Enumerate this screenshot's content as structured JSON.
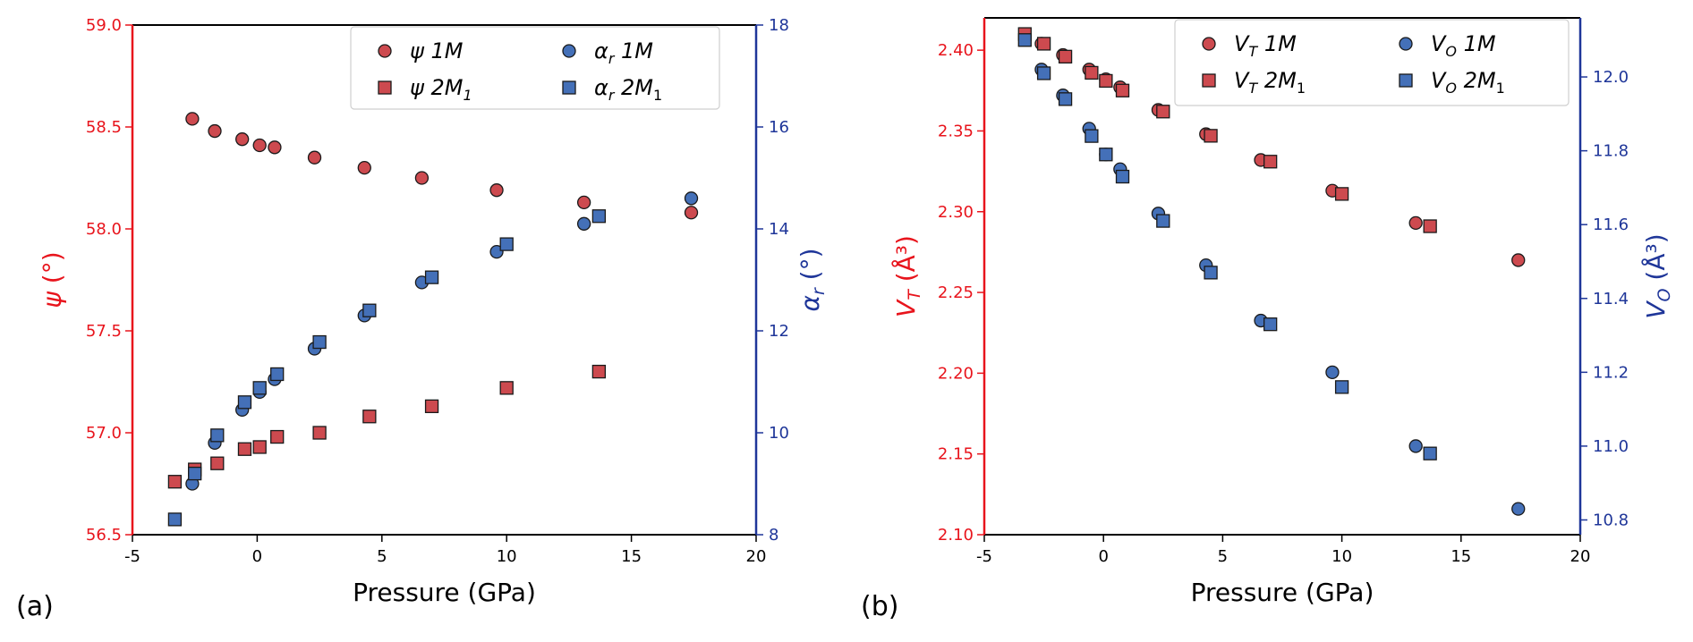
{
  "chart_data": [
    {
      "panel_label": "(a)",
      "type": "scatter",
      "xlabel": "Pressure (GPa)",
      "x_ticks": [
        "-5",
        "0",
        "5",
        "10",
        "15",
        "20"
      ],
      "xlim": [
        -5,
        20
      ],
      "y_left": {
        "label_main": "ψ",
        "label_unit": " (°)",
        "color": "#e8141c",
        "ylim": [
          56.5,
          59.0
        ],
        "ticks": [
          "56.5",
          "57.0",
          "57.5",
          "58.0",
          "58.5",
          "59.0"
        ]
      },
      "y_right": {
        "label_main": "α",
        "label_sub": "r",
        "label_unit": " (°)",
        "color": "#1f3699",
        "ylim": [
          8,
          18
        ],
        "ticks": [
          "8",
          "10",
          "12",
          "14",
          "16",
          "18"
        ]
      },
      "series": [
        {
          "name": "ψ 1M",
          "legend_main": "ψ 1M",
          "legend_sub": "",
          "marker": "circle",
          "color": "#cd4a4f",
          "axis": "left",
          "points": [
            [
              -2.6,
              58.54
            ],
            [
              -1.7,
              58.48
            ],
            [
              -0.6,
              58.44
            ],
            [
              0.1,
              58.41
            ],
            [
              0.7,
              58.4
            ],
            [
              2.3,
              58.35
            ],
            [
              4.3,
              58.3
            ],
            [
              6.6,
              58.25
            ],
            [
              9.6,
              58.19
            ],
            [
              13.1,
              58.13
            ],
            [
              17.4,
              58.08
            ]
          ]
        },
        {
          "name": "ψ 2M1",
          "legend_main": "ψ 2M",
          "legend_sub": "1",
          "marker": "square",
          "color": "#cd4a4f",
          "axis": "left",
          "points": [
            [
              -3.3,
              56.76
            ],
            [
              -2.5,
              56.82
            ],
            [
              -1.6,
              56.85
            ],
            [
              -0.5,
              56.92
            ],
            [
              0.1,
              56.93
            ],
            [
              0.8,
              56.98
            ],
            [
              2.5,
              57.0
            ],
            [
              4.5,
              57.08
            ],
            [
              7.0,
              57.13
            ],
            [
              10.0,
              57.22
            ],
            [
              13.7,
              57.3
            ]
          ]
        },
        {
          "name": "αr 1M",
          "legend_main": "α",
          "legend_sub": "r",
          "legend_after": " 1M",
          "marker": "circle",
          "color": "#4470b8",
          "axis": "right",
          "points": [
            [
              -2.6,
              9.0
            ],
            [
              -1.7,
              9.8
            ],
            [
              -0.6,
              10.45
            ],
            [
              0.1,
              10.8
            ],
            [
              0.7,
              11.05
            ],
            [
              2.3,
              11.65
            ],
            [
              4.3,
              12.3
            ],
            [
              6.6,
              12.95
            ],
            [
              9.6,
              13.55
            ],
            [
              13.1,
              14.1
            ],
            [
              17.4,
              14.6
            ]
          ]
        },
        {
          "name": "αr 2M1",
          "legend_main": "α",
          "legend_sub": "r",
          "legend_after": " 2M",
          "legend_sub2": "1",
          "marker": "square",
          "color": "#4470b8",
          "axis": "right",
          "points": [
            [
              -3.3,
              8.3
            ],
            [
              -2.5,
              9.2
            ],
            [
              -1.6,
              9.95
            ],
            [
              -0.5,
              10.6
            ],
            [
              0.1,
              10.88
            ],
            [
              0.8,
              11.15
            ],
            [
              2.5,
              11.78
            ],
            [
              4.5,
              12.4
            ],
            [
              7.0,
              13.05
            ],
            [
              10.0,
              13.7
            ],
            [
              13.7,
              14.25
            ]
          ]
        }
      ]
    },
    {
      "panel_label": "(b)",
      "type": "scatter",
      "xlabel": "Pressure (GPa)",
      "x_ticks": [
        "-5",
        "0",
        "5",
        "10",
        "15",
        "20"
      ],
      "xlim": [
        -5,
        20
      ],
      "y_left": {
        "label_main": "V",
        "label_sub": "T",
        "label_unit": " (Å³)",
        "color": "#e8141c",
        "ylim": [
          2.1,
          2.42
        ],
        "ticks": [
          "2.10",
          "2.15",
          "2.20",
          "2.25",
          "2.30",
          "2.35",
          "2.40"
        ]
      },
      "y_right": {
        "label_main": "V",
        "label_sub": "O",
        "label_unit": " (Å³)",
        "color": "#1f3699",
        "ylim": [
          10.76,
          12.16
        ],
        "ticks": [
          "10.8",
          "11.0",
          "11.2",
          "11.4",
          "11.6",
          "11.8",
          "12.0"
        ]
      },
      "series": [
        {
          "name": "VT 1M",
          "legend_main": "V",
          "legend_sub": "T",
          "legend_after": " 1M",
          "marker": "circle",
          "color": "#cd4a4f",
          "axis": "left",
          "points": [
            [
              -2.6,
              2.404
            ],
            [
              -1.7,
              2.397
            ],
            [
              -0.6,
              2.388
            ],
            [
              0.1,
              2.382
            ],
            [
              0.7,
              2.377
            ],
            [
              2.3,
              2.363
            ],
            [
              4.3,
              2.348
            ],
            [
              6.6,
              2.332
            ],
            [
              9.6,
              2.313
            ],
            [
              13.1,
              2.293
            ],
            [
              17.4,
              2.27
            ]
          ]
        },
        {
          "name": "VT 2M1",
          "legend_main": "V",
          "legend_sub": "T",
          "legend_after": " 2M",
          "legend_sub2": "1",
          "marker": "square",
          "color": "#cd4a4f",
          "axis": "left",
          "points": [
            [
              -3.3,
              2.41
            ],
            [
              -2.5,
              2.404
            ],
            [
              -1.6,
              2.396
            ],
            [
              -0.5,
              2.386
            ],
            [
              0.1,
              2.381
            ],
            [
              0.8,
              2.375
            ],
            [
              2.5,
              2.362
            ],
            [
              4.5,
              2.347
            ],
            [
              7.0,
              2.331
            ],
            [
              10.0,
              2.311
            ],
            [
              13.7,
              2.291
            ]
          ]
        },
        {
          "name": "VO 1M",
          "legend_main": "V",
          "legend_sub": "O",
          "legend_after": " 1M",
          "marker": "circle",
          "color": "#4470b8",
          "axis": "right",
          "points": [
            [
              -2.6,
              12.02
            ],
            [
              -1.7,
              11.95
            ],
            [
              -0.6,
              11.86
            ],
            [
              0.1,
              11.79
            ],
            [
              0.7,
              11.75
            ],
            [
              2.3,
              11.63
            ],
            [
              4.3,
              11.49
            ],
            [
              6.6,
              11.34
            ],
            [
              9.6,
              11.2
            ],
            [
              13.1,
              11.0
            ],
            [
              17.4,
              10.83
            ]
          ]
        },
        {
          "name": "VO 2M1",
          "legend_main": "V",
          "legend_sub": "O",
          "legend_after": " 2M",
          "legend_sub2": "1",
          "marker": "square",
          "color": "#4470b8",
          "axis": "right",
          "points": [
            [
              -3.3,
              12.1
            ],
            [
              -2.5,
              12.01
            ],
            [
              -1.6,
              11.94
            ],
            [
              -0.5,
              11.84
            ],
            [
              0.1,
              11.79
            ],
            [
              0.8,
              11.73
            ],
            [
              2.5,
              11.61
            ],
            [
              4.5,
              11.47
            ],
            [
              7.0,
              11.33
            ],
            [
              10.0,
              11.16
            ],
            [
              13.7,
              10.98
            ]
          ]
        }
      ]
    }
  ]
}
